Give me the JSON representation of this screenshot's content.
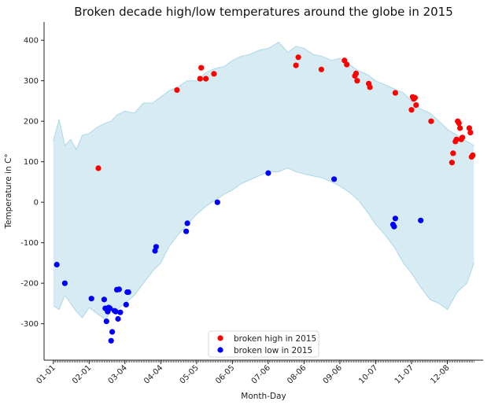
{
  "chart_data": {
    "type": "scatter",
    "title": "Broken decade high/low temperatures around the globe in 2015",
    "xlabel": "Month-Day",
    "ylabel": "Temperature in C°",
    "ylim": [
      -390,
      445
    ],
    "xlim": [
      -8,
      372
    ],
    "yticks": [
      -300,
      -200,
      -100,
      0,
      100,
      200,
      300,
      400
    ],
    "xticks": [
      {
        "day": 0,
        "label": "01-01"
      },
      {
        "day": 31,
        "label": "02-01"
      },
      {
        "day": 62,
        "label": "03-04"
      },
      {
        "day": 93,
        "label": "04-04"
      },
      {
        "day": 124,
        "label": "05-05"
      },
      {
        "day": 155,
        "label": "06-05"
      },
      {
        "day": 186,
        "label": "07-06"
      },
      {
        "day": 217,
        "label": "08-06"
      },
      {
        "day": 248,
        "label": "09-06"
      },
      {
        "day": 279,
        "label": "10-07"
      },
      {
        "day": 310,
        "label": "11-07"
      },
      {
        "day": 341,
        "label": "12-08"
      }
    ],
    "grid": false,
    "legend_position": "bottom-center",
    "band": {
      "name": "",
      "color": "#add8e6",
      "fill_opacity": 0.5,
      "days": [
        0,
        5,
        10,
        15,
        20,
        25,
        31,
        38,
        45,
        50,
        55,
        62,
        70,
        78,
        86,
        93,
        100,
        108,
        116,
        124,
        132,
        140,
        148,
        155,
        162,
        170,
        178,
        186,
        195,
        203,
        210,
        217,
        225,
        233,
        241,
        248,
        256,
        264,
        272,
        279,
        287,
        295,
        303,
        310,
        318,
        326,
        334,
        341,
        350,
        358,
        364
      ],
      "upper": [
        150,
        205,
        140,
        155,
        130,
        165,
        170,
        185,
        195,
        200,
        215,
        225,
        220,
        245,
        245,
        260,
        275,
        285,
        300,
        300,
        320,
        330,
        335,
        350,
        360,
        365,
        375,
        380,
        395,
        370,
        385,
        380,
        365,
        360,
        350,
        355,
        340,
        325,
        315,
        300,
        290,
        280,
        270,
        250,
        230,
        220,
        200,
        180,
        165,
        150,
        140
      ],
      "lower": [
        -255,
        -265,
        -230,
        -250,
        -270,
        -285,
        -260,
        -275,
        -290,
        -270,
        -265,
        -250,
        -230,
        -200,
        -170,
        -150,
        -110,
        -80,
        -55,
        -30,
        -10,
        5,
        20,
        30,
        45,
        55,
        65,
        75,
        75,
        85,
        75,
        70,
        65,
        60,
        50,
        40,
        25,
        5,
        -25,
        -55,
        -80,
        -110,
        -150,
        -175,
        -210,
        -240,
        -250,
        -265,
        -220,
        -200,
        -150
      ]
    },
    "series": [
      {
        "name": "broken high in 2015",
        "color": "#ff0000",
        "points": [
          {
            "x": 39,
            "y": 84
          },
          {
            "x": 107,
            "y": 277
          },
          {
            "x": 127,
            "y": 305
          },
          {
            "x": 128,
            "y": 332
          },
          {
            "x": 132,
            "y": 305
          },
          {
            "x": 139,
            "y": 317
          },
          {
            "x": 210,
            "y": 338
          },
          {
            "x": 212,
            "y": 358
          },
          {
            "x": 232,
            "y": 328
          },
          {
            "x": 252,
            "y": 350
          },
          {
            "x": 254,
            "y": 340
          },
          {
            "x": 261,
            "y": 312
          },
          {
            "x": 262,
            "y": 318
          },
          {
            "x": 263,
            "y": 300
          },
          {
            "x": 273,
            "y": 293
          },
          {
            "x": 274,
            "y": 284
          },
          {
            "x": 296,
            "y": 270
          },
          {
            "x": 310,
            "y": 228
          },
          {
            "x": 311,
            "y": 260
          },
          {
            "x": 312,
            "y": 255
          },
          {
            "x": 313,
            "y": 258
          },
          {
            "x": 314,
            "y": 240
          },
          {
            "x": 327,
            "y": 200
          },
          {
            "x": 345,
            "y": 98
          },
          {
            "x": 346,
            "y": 121
          },
          {
            "x": 348,
            "y": 150
          },
          {
            "x": 349,
            "y": 155
          },
          {
            "x": 350,
            "y": 200
          },
          {
            "x": 351,
            "y": 195
          },
          {
            "x": 352,
            "y": 183
          },
          {
            "x": 353,
            "y": 155
          },
          {
            "x": 354,
            "y": 160
          },
          {
            "x": 360,
            "y": 183
          },
          {
            "x": 361,
            "y": 172
          },
          {
            "x": 362,
            "y": 112
          },
          {
            "x": 363,
            "y": 116
          }
        ]
      },
      {
        "name": "broken low in 2015",
        "color": "#0000ff",
        "points": [
          {
            "x": 3,
            "y": -154
          },
          {
            "x": 10,
            "y": -200
          },
          {
            "x": 33,
            "y": -238
          },
          {
            "x": 44,
            "y": -240
          },
          {
            "x": 45,
            "y": -262
          },
          {
            "x": 46,
            "y": -294
          },
          {
            "x": 47,
            "y": -270
          },
          {
            "x": 48,
            "y": -260
          },
          {
            "x": 49,
            "y": -262
          },
          {
            "x": 50,
            "y": -342
          },
          {
            "x": 51,
            "y": -320
          },
          {
            "x": 53,
            "y": -268
          },
          {
            "x": 54,
            "y": -270
          },
          {
            "x": 55,
            "y": -216
          },
          {
            "x": 56,
            "y": -288
          },
          {
            "x": 57,
            "y": -215
          },
          {
            "x": 58,
            "y": -272
          },
          {
            "x": 63,
            "y": -253
          },
          {
            "x": 64,
            "y": -222
          },
          {
            "x": 65,
            "y": -222
          },
          {
            "x": 88,
            "y": -120
          },
          {
            "x": 89,
            "y": -110
          },
          {
            "x": 115,
            "y": -72
          },
          {
            "x": 116,
            "y": -52
          },
          {
            "x": 142,
            "y": 0
          },
          {
            "x": 186,
            "y": 72
          },
          {
            "x": 243,
            "y": 57
          },
          {
            "x": 294,
            "y": -55
          },
          {
            "x": 295,
            "y": -60
          },
          {
            "x": 296,
            "y": -40
          },
          {
            "x": 318,
            "y": -45
          }
        ]
      }
    ]
  }
}
